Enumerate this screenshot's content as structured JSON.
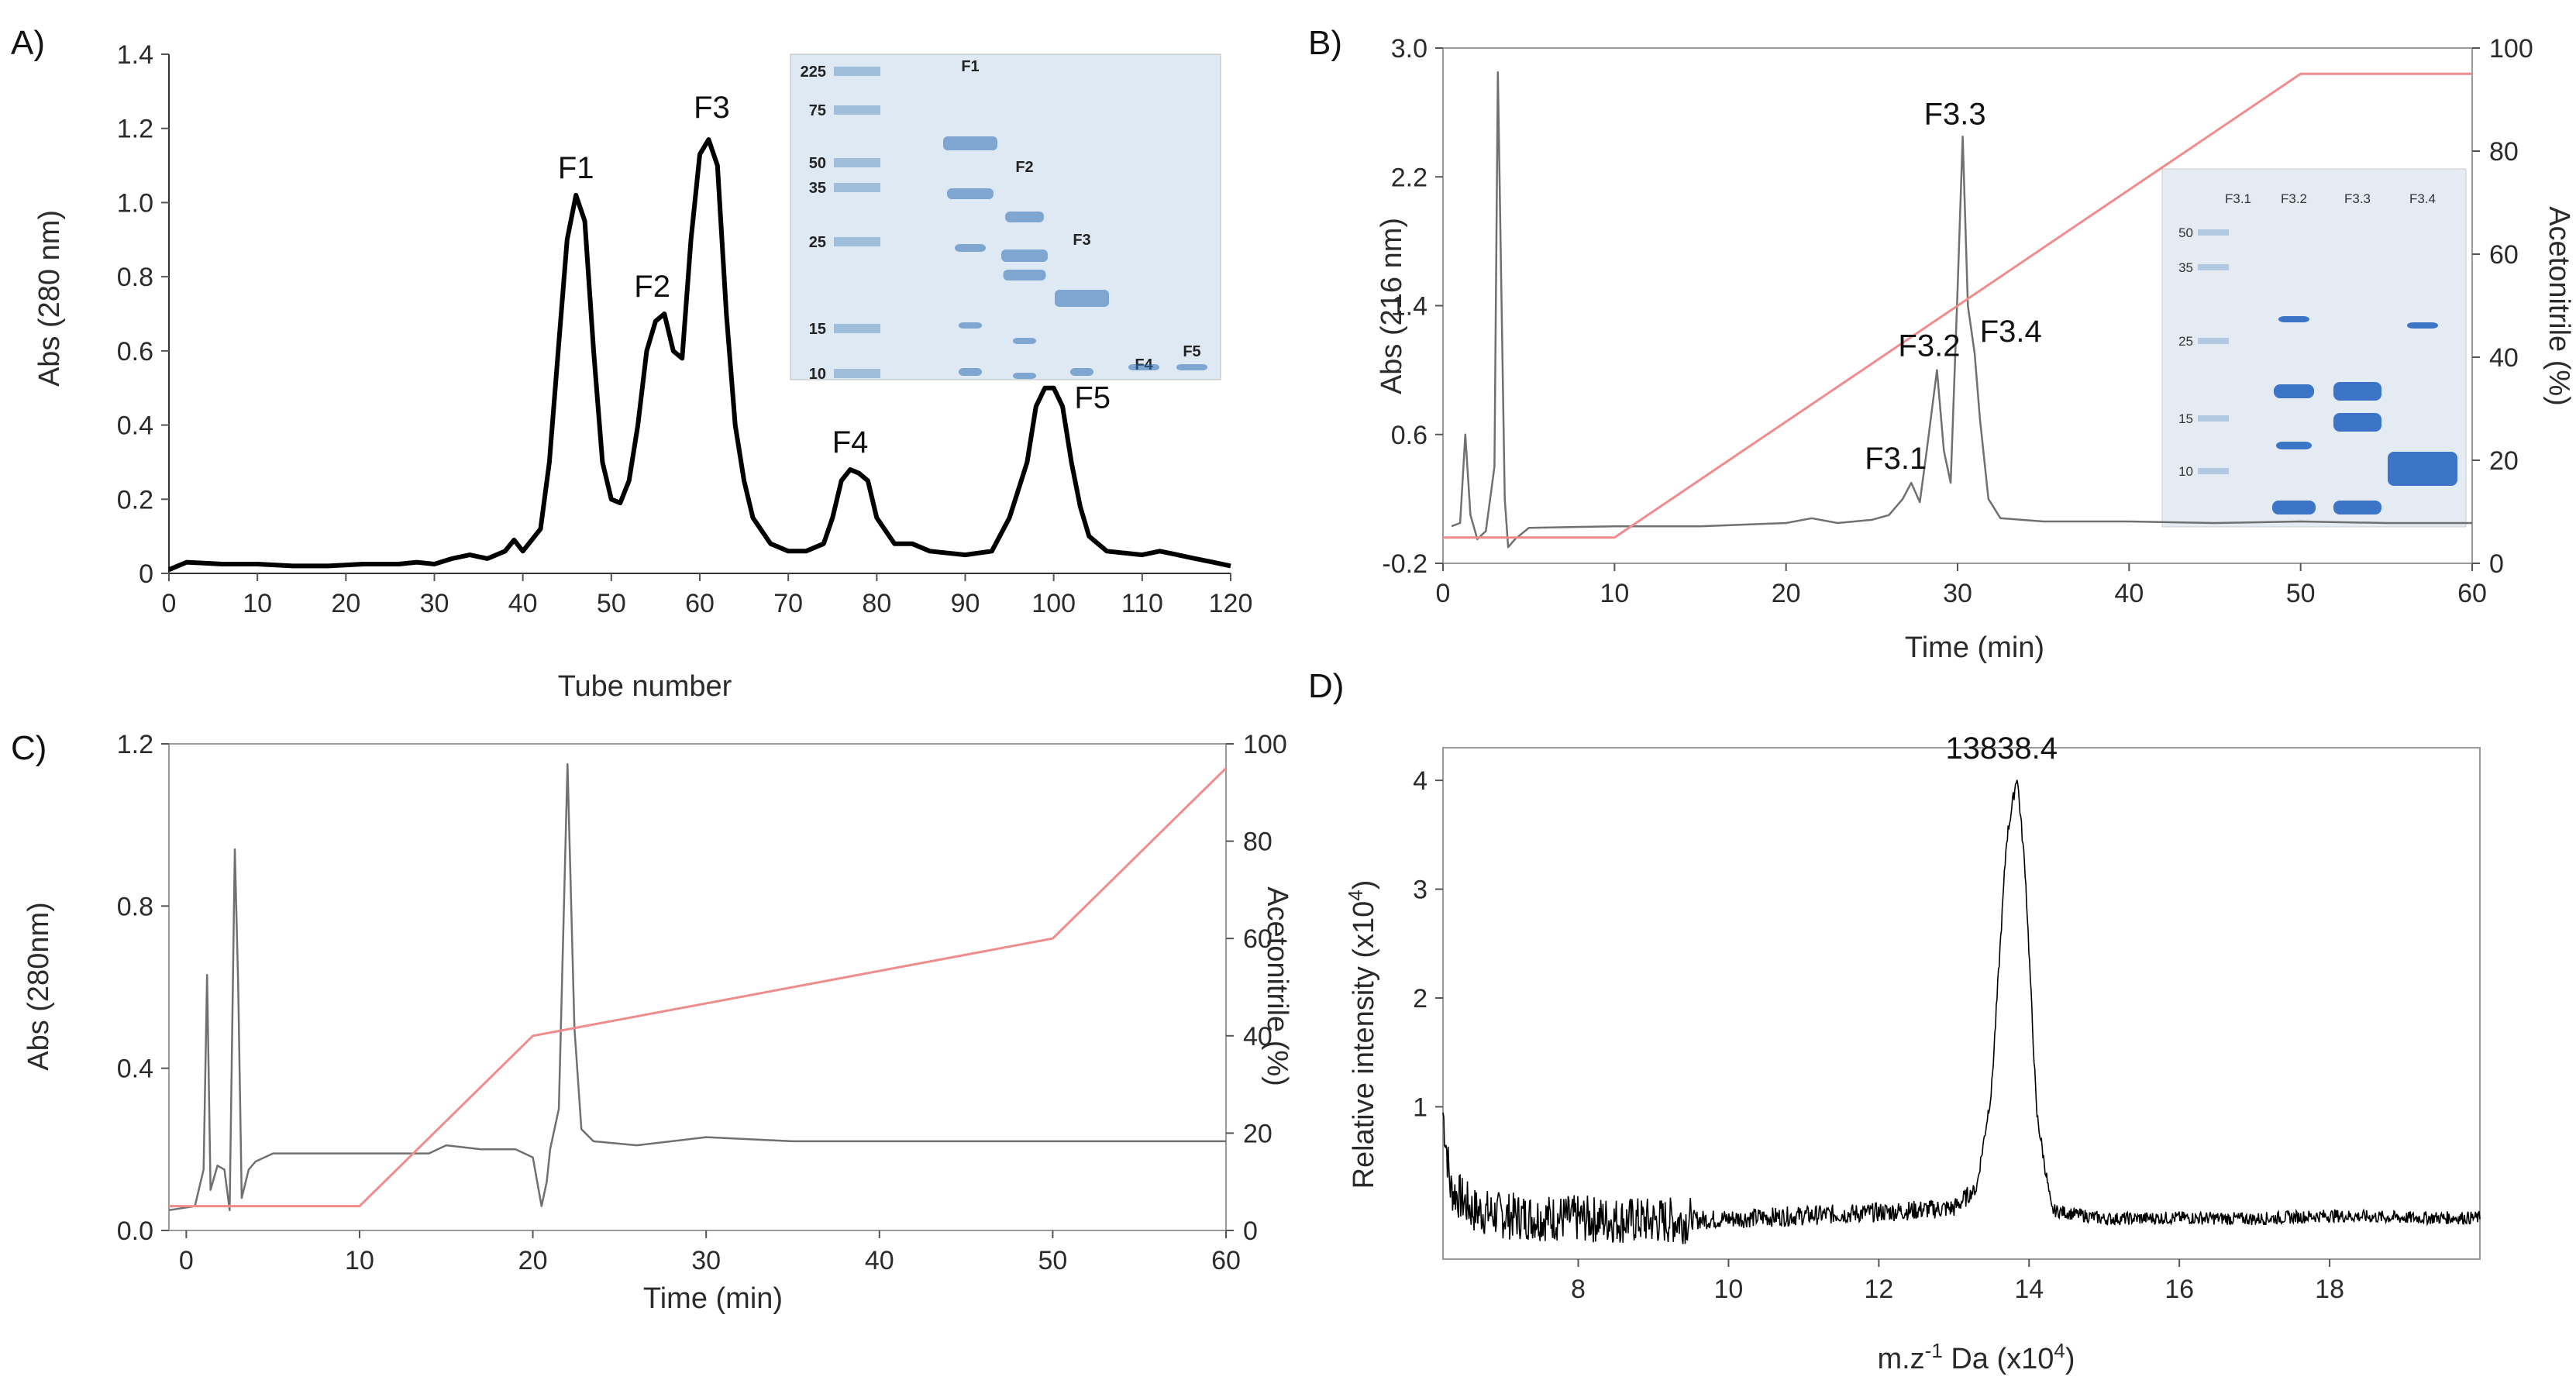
{
  "chart_data": [
    {
      "id": "A",
      "panel_label": "A)",
      "type": "line",
      "xlabel": "Tube number",
      "ylabel": "Abs (280 nm)",
      "xlim": [
        0,
        120
      ],
      "ylim": [
        0,
        1.4
      ],
      "x_ticks": [
        0,
        10,
        20,
        30,
        40,
        50,
        60,
        70,
        80,
        90,
        100,
        110,
        120
      ],
      "y_ticks": [
        "0",
        "0.2",
        "0.4",
        "0.6",
        "0.8",
        "1.0",
        "1.2",
        "1.4"
      ],
      "series": [
        {
          "name": "Abs 280 nm",
          "color": "#000000",
          "points": [
            [
              0,
              0.01
            ],
            [
              2,
              0.03
            ],
            [
              6,
              0.025
            ],
            [
              10,
              0.025
            ],
            [
              14,
              0.02
            ],
            [
              18,
              0.02
            ],
            [
              22,
              0.025
            ],
            [
              26,
              0.025
            ],
            [
              28,
              0.03
            ],
            [
              30,
              0.025
            ],
            [
              32,
              0.04
            ],
            [
              34,
              0.05
            ],
            [
              36,
              0.04
            ],
            [
              38,
              0.06
            ],
            [
              39,
              0.09
            ],
            [
              40,
              0.06
            ],
            [
              42,
              0.12
            ],
            [
              43,
              0.3
            ],
            [
              44,
              0.6
            ],
            [
              45,
              0.9
            ],
            [
              46,
              1.02
            ],
            [
              47,
              0.95
            ],
            [
              48,
              0.6
            ],
            [
              49,
              0.3
            ],
            [
              50,
              0.2
            ],
            [
              51,
              0.19
            ],
            [
              52,
              0.25
            ],
            [
              53,
              0.4
            ],
            [
              54,
              0.6
            ],
            [
              55,
              0.68
            ],
            [
              56,
              0.7
            ],
            [
              57,
              0.6
            ],
            [
              58,
              0.58
            ],
            [
              59,
              0.9
            ],
            [
              60,
              1.13
            ],
            [
              61,
              1.17
            ],
            [
              62,
              1.1
            ],
            [
              63,
              0.7
            ],
            [
              64,
              0.4
            ],
            [
              65,
              0.25
            ],
            [
              66,
              0.15
            ],
            [
              68,
              0.08
            ],
            [
              70,
              0.06
            ],
            [
              72,
              0.06
            ],
            [
              74,
              0.08
            ],
            [
              75,
              0.15
            ],
            [
              76,
              0.25
            ],
            [
              77,
              0.28
            ],
            [
              78,
              0.27
            ],
            [
              79,
              0.25
            ],
            [
              80,
              0.15
            ],
            [
              82,
              0.08
            ],
            [
              84,
              0.08
            ],
            [
              86,
              0.06
            ],
            [
              90,
              0.05
            ],
            [
              93,
              0.06
            ],
            [
              95,
              0.15
            ],
            [
              97,
              0.3
            ],
            [
              98,
              0.45
            ],
            [
              99,
              0.5
            ],
            [
              100,
              0.5
            ],
            [
              101,
              0.45
            ],
            [
              102,
              0.3
            ],
            [
              103,
              0.18
            ],
            [
              104,
              0.1
            ],
            [
              106,
              0.06
            ],
            [
              110,
              0.05
            ],
            [
              112,
              0.06
            ],
            [
              114,
              0.05
            ],
            [
              116,
              0.04
            ],
            [
              118,
              0.03
            ],
            [
              120,
              0.02
            ]
          ]
        }
      ],
      "peak_labels": [
        {
          "text": "F1",
          "x": 46,
          "y": 1.02
        },
        {
          "text": "F2",
          "x": 55.5,
          "y": 0.7
        },
        {
          "text": "F3",
          "x": 61,
          "y": 1.17
        },
        {
          "text": "F4",
          "x": 77,
          "y": 0.28
        },
        {
          "text": "F5",
          "x": 100,
          "y": 0.5
        }
      ],
      "inset_gel": {
        "markers": [
          "225",
          "75",
          "50",
          "35",
          "25",
          "15",
          "10"
        ],
        "lanes": [
          "F1",
          "F2",
          "F3",
          "F4",
          "F5"
        ]
      }
    },
    {
      "id": "B",
      "panel_label": "B)",
      "type": "line",
      "xlabel": "Time (min)",
      "ylabel": "Abs (216 nm)",
      "y2label": "Acetonitrile (%)",
      "xlim": [
        0,
        60
      ],
      "ylim": [
        -0.2,
        3.0
      ],
      "y2lim": [
        0,
        100
      ],
      "x_ticks": [
        0,
        10,
        20,
        30,
        40,
        50,
        60
      ],
      "y_ticks": [
        "-0.2",
        "0.6",
        "1.4",
        "2.2",
        "3.0"
      ],
      "y2_ticks": [
        0,
        20,
        40,
        60,
        80,
        100
      ],
      "series": [
        {
          "name": "Abs 216 nm",
          "color": "#707070",
          "points": [
            [
              0.5,
              0.03
            ],
            [
              1,
              0.05
            ],
            [
              1.3,
              0.6
            ],
            [
              1.6,
              0.1
            ],
            [
              2,
              -0.05
            ],
            [
              2.5,
              0.0
            ],
            [
              3,
              0.4
            ],
            [
              3.2,
              2.85
            ],
            [
              3.4,
              1.5
            ],
            [
              3.6,
              0.2
            ],
            [
              3.8,
              -0.1
            ],
            [
              4.2,
              -0.05
            ],
            [
              5,
              0.02
            ],
            [
              10,
              0.03
            ],
            [
              15,
              0.03
            ],
            [
              20,
              0.05
            ],
            [
              21.5,
              0.08
            ],
            [
              23,
              0.05
            ],
            [
              25,
              0.07
            ],
            [
              26,
              0.1
            ],
            [
              26.8,
              0.2
            ],
            [
              27.3,
              0.3
            ],
            [
              27.8,
              0.18
            ],
            [
              28.2,
              0.5
            ],
            [
              28.8,
              1.0
            ],
            [
              29.2,
              0.5
            ],
            [
              29.6,
              0.3
            ],
            [
              30,
              1.5
            ],
            [
              30.3,
              2.45
            ],
            [
              30.6,
              1.4
            ],
            [
              31,
              1.1
            ],
            [
              31.3,
              0.7
            ],
            [
              31.8,
              0.2
            ],
            [
              32.5,
              0.08
            ],
            [
              35,
              0.06
            ],
            [
              40,
              0.06
            ],
            [
              45,
              0.05
            ],
            [
              50,
              0.06
            ],
            [
              55,
              0.05
            ],
            [
              60,
              0.05
            ]
          ]
        },
        {
          "name": "Acetonitrile",
          "color": "#f08c8c",
          "axis": "y2",
          "points": [
            [
              0,
              5
            ],
            [
              10,
              5
            ],
            [
              50,
              95
            ],
            [
              60,
              95
            ]
          ]
        }
      ],
      "peak_labels": [
        {
          "text": "F3.1",
          "x": 27.3,
          "y": 0.3
        },
        {
          "text": "F3.2",
          "x": 28.8,
          "y": 1.0
        },
        {
          "text": "F3.3",
          "x": 30.3,
          "y": 2.45
        },
        {
          "text": "F3.4",
          "x": 31.3,
          "y": 1.1
        }
      ],
      "inset_gel": {
        "markers": [
          "50",
          "35",
          "25",
          "15",
          "10"
        ],
        "lanes": [
          "F3.1",
          "F3.2",
          "F3.3",
          "F3.4"
        ]
      }
    },
    {
      "id": "C",
      "panel_label": "C)",
      "type": "line",
      "xlabel": "Time (min)",
      "ylabel": "Abs (280nm)",
      "y2label": "Acetonitrile (%)",
      "xlim": [
        -1,
        60
      ],
      "ylim": [
        0,
        1.2
      ],
      "y2lim": [
        0,
        100
      ],
      "x_ticks": [
        0,
        10,
        20,
        30,
        40,
        50,
        60
      ],
      "y_ticks": [
        "0.0",
        "0.4",
        "0.8",
        "1.2"
      ],
      "y2_ticks": [
        0,
        20,
        40,
        60,
        80,
        100
      ],
      "series": [
        {
          "name": "Abs 280 nm",
          "color": "#707070",
          "points": [
            [
              -1,
              0.05
            ],
            [
              0.5,
              0.06
            ],
            [
              1,
              0.15
            ],
            [
              1.2,
              0.63
            ],
            [
              1.4,
              0.1
            ],
            [
              1.8,
              0.16
            ],
            [
              2.2,
              0.15
            ],
            [
              2.5,
              0.05
            ],
            [
              2.8,
              0.94
            ],
            [
              3.0,
              0.6
            ],
            [
              3.2,
              0.08
            ],
            [
              3.6,
              0.15
            ],
            [
              4,
              0.17
            ],
            [
              5,
              0.19
            ],
            [
              10,
              0.19
            ],
            [
              14,
              0.19
            ],
            [
              15,
              0.21
            ],
            [
              17,
              0.2
            ],
            [
              19,
              0.2
            ],
            [
              20,
              0.18
            ],
            [
              20.5,
              0.06
            ],
            [
              20.8,
              0.12
            ],
            [
              21,
              0.2
            ],
            [
              21.5,
              0.3
            ],
            [
              22,
              1.15
            ],
            [
              22.4,
              0.5
            ],
            [
              22.8,
              0.25
            ],
            [
              23.5,
              0.22
            ],
            [
              26,
              0.21
            ],
            [
              30,
              0.23
            ],
            [
              35,
              0.22
            ],
            [
              40,
              0.22
            ],
            [
              50,
              0.22
            ],
            [
              60,
              0.22
            ]
          ]
        },
        {
          "name": "Acetonitrile",
          "color": "#f08c8c",
          "axis": "y2",
          "points": [
            [
              -1,
              5
            ],
            [
              10,
              5
            ],
            [
              20,
              40
            ],
            [
              50,
              60
            ],
            [
              60,
              95
            ]
          ]
        }
      ]
    },
    {
      "id": "D",
      "panel_label": "D)",
      "type": "line",
      "xlabel": "m.z",
      "xlabel_sup": "-1",
      "xlabel_rest": " Da (x10",
      "xlabel_sup2": "4",
      "xlabel_end": ")",
      "ylabel": "Relative intensity (x10",
      "ylabel_sup": "4",
      "ylabel_end": ")",
      "xlim": [
        6.2,
        20
      ],
      "ylim": [
        -0.4,
        4.3
      ],
      "x_ticks": [
        8,
        10,
        12,
        14,
        16,
        18
      ],
      "y_ticks": [
        "1",
        "2",
        "3",
        "4"
      ],
      "series": [
        {
          "name": "Spectrum",
          "color": "#000000",
          "baseline": [
            [
              6.2,
              1.0
            ],
            [
              6.3,
              0.3
            ],
            [
              6.6,
              0.1
            ],
            [
              7,
              0.05
            ],
            [
              8,
              0.02
            ],
            [
              9,
              0.0
            ],
            [
              10,
              0.02
            ],
            [
              11,
              0.05
            ],
            [
              12,
              0.08
            ],
            [
              13,
              0.12
            ],
            [
              13.3,
              0.3
            ],
            [
              13.5,
              1.2
            ],
            [
              13.7,
              3.5
            ],
            [
              13.84,
              4.1
            ],
            [
              13.95,
              3.2
            ],
            [
              14.1,
              1.0
            ],
            [
              14.3,
              0.1
            ],
            [
              15,
              0.02
            ],
            [
              16,
              0.03
            ],
            [
              17,
              0.02
            ],
            [
              18,
              0.05
            ],
            [
              19,
              0.03
            ],
            [
              20,
              0.03
            ]
          ]
        }
      ],
      "peak_labels": [
        {
          "text": "13838.4",
          "x": 13.84,
          "y": 4.1
        }
      ]
    }
  ]
}
